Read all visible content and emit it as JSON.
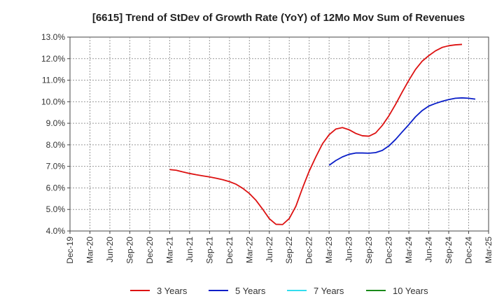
{
  "chart_data": {
    "type": "line",
    "title": "[6615]  Trend of StDev of Growth Rate (YoY) of 12Mo Mov Sum of Revenues",
    "xlabel": "",
    "ylabel": "",
    "ylim": [
      4.0,
      13.0
    ],
    "y_ticks": [
      4.0,
      5.0,
      6.0,
      7.0,
      8.0,
      9.0,
      10.0,
      11.0,
      12.0,
      13.0
    ],
    "y_tick_labels": [
      "4.0%",
      "5.0%",
      "6.0%",
      "7.0%",
      "8.0%",
      "9.0%",
      "10.0%",
      "11.0%",
      "12.0%",
      "13.0%"
    ],
    "x_tick_labels": [
      "Dec-19",
      "Mar-20",
      "Jun-20",
      "Sep-20",
      "Dec-20",
      "Mar-21",
      "Jun-21",
      "Sep-21",
      "Dec-21",
      "Mar-22",
      "Jun-22",
      "Sep-22",
      "Dec-22",
      "Mar-23",
      "Jun-23",
      "Sep-23",
      "Dec-23",
      "Mar-24",
      "Jun-24",
      "Sep-24",
      "Dec-24",
      "Mar-25"
    ],
    "grid": true,
    "legend_position": "bottom",
    "series": [
      {
        "name": "3 Years",
        "color": "#dd1111",
        "start_index": 15,
        "values": [
          6.85,
          6.82,
          6.74,
          6.67,
          6.61,
          6.56,
          6.51,
          6.45,
          6.38,
          6.29,
          6.17,
          5.98,
          5.74,
          5.42,
          5.01,
          4.57,
          4.31,
          4.3,
          4.58,
          5.15,
          6.0,
          6.78,
          7.44,
          8.05,
          8.47,
          8.73,
          8.8,
          8.7,
          8.53,
          8.42,
          8.4,
          8.55,
          8.9,
          9.35,
          9.88,
          10.45,
          11.0,
          11.5,
          11.88,
          12.14,
          12.36,
          12.52,
          12.6,
          12.64,
          12.66
        ]
      },
      {
        "name": "5 Years",
        "color": "#0a1ec8",
        "start_index": 39,
        "values": [
          7.05,
          7.27,
          7.44,
          7.56,
          7.62,
          7.62,
          7.61,
          7.64,
          7.74,
          7.95,
          8.25,
          8.6,
          8.94,
          9.3,
          9.59,
          9.8,
          9.92,
          10.02,
          10.1,
          10.16,
          10.18,
          10.16,
          10.12
        ]
      },
      {
        "name": "7 Years",
        "color": "#33ddee",
        "start_index": 0,
        "values": []
      },
      {
        "name": "10 Years",
        "color": "#1a8a1a",
        "start_index": 0,
        "values": []
      }
    ]
  }
}
